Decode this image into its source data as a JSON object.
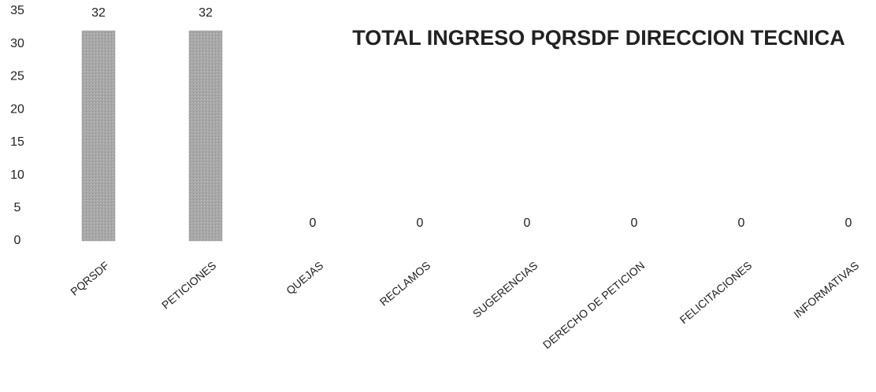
{
  "chart_data": {
    "type": "bar",
    "title": "TOTAL INGRESO PQRSDF  DIRECCION TECNICA",
    "categories": [
      "PQRSDF",
      "PETICIONES",
      "QUEJAS",
      "RECLAMOS",
      "SUGERENCIAS",
      "DERECHO DE PETICION",
      "FELICITACIONES",
      "INFORMATIVAS"
    ],
    "values": [
      32,
      32,
      0,
      0,
      0,
      0,
      0,
      0
    ],
    "color": "#a3a3a3",
    "ylim": [
      0,
      35
    ],
    "yticks": [
      0,
      5,
      10,
      15,
      20,
      25,
      30,
      35
    ],
    "grid": false
  }
}
